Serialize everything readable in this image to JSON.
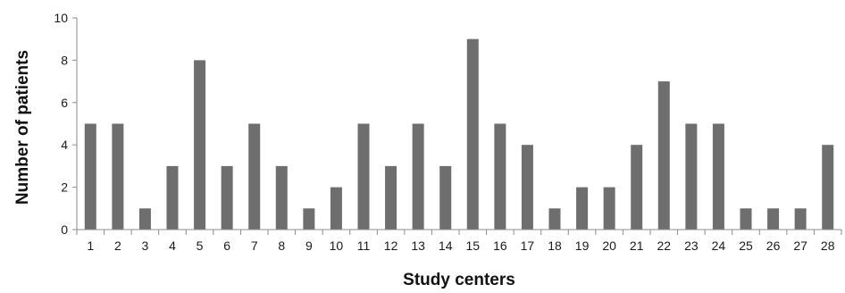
{
  "chart_data": {
    "type": "bar",
    "title": "",
    "xlabel": "Study centers",
    "ylabel": "Number of patients",
    "categories": [
      "1",
      "2",
      "3",
      "4",
      "5",
      "6",
      "7",
      "8",
      "9",
      "10",
      "11",
      "12",
      "13",
      "14",
      "15",
      "16",
      "17",
      "18",
      "19",
      "20",
      "21",
      "22",
      "23",
      "24",
      "25",
      "26",
      "27",
      "28"
    ],
    "values": [
      5,
      5,
      1,
      3,
      8,
      3,
      5,
      3,
      1,
      2,
      5,
      3,
      5,
      3,
      9,
      5,
      4,
      1,
      2,
      2,
      4,
      7,
      5,
      5,
      1,
      1,
      1,
      4
    ],
    "ylim": [
      0,
      10
    ],
    "yticks": [
      0,
      2,
      4,
      6,
      8,
      10
    ],
    "grid": false,
    "legend": "none",
    "bar_color": "#6e6e6e",
    "axis_color": "#8c8c8c"
  }
}
